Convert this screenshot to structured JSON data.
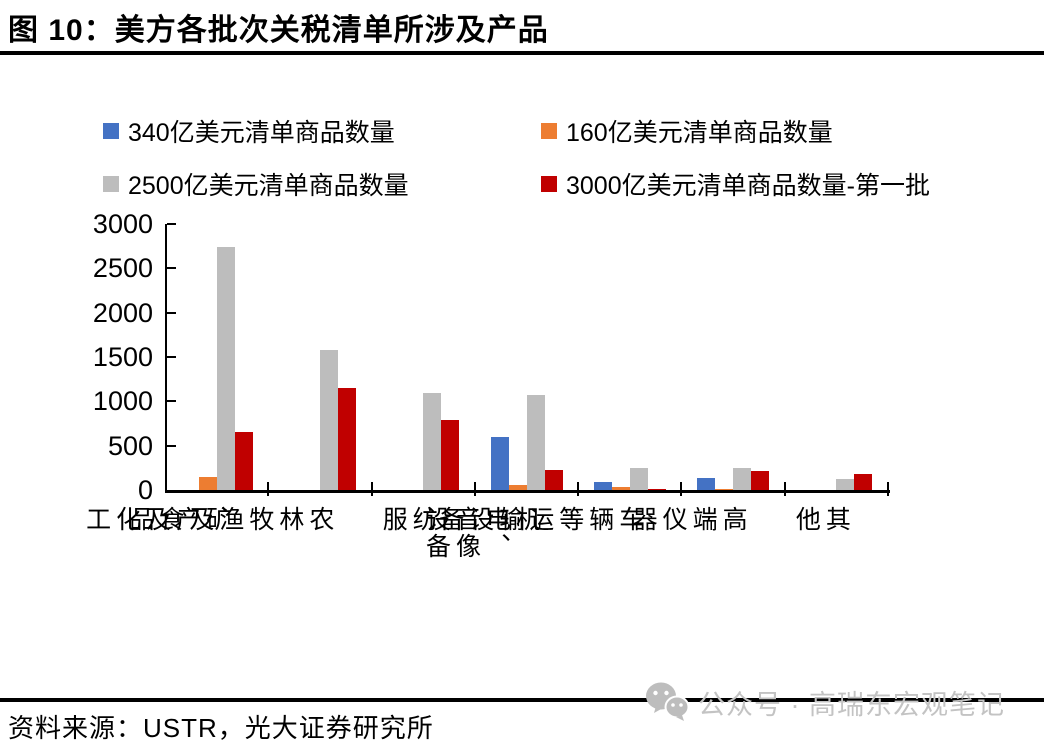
{
  "header": {
    "title": "图 10：美方各批次关税清单所涉及产品"
  },
  "chart_data": {
    "type": "bar",
    "title": "图 10：美方各批次关税清单所涉及产品",
    "categories": [
      "矿产及化工",
      "农林牧渔及食品",
      "纺服",
      "机电、音像设备",
      "车辆等运输设备",
      "高端仪器",
      "其他"
    ],
    "series": [
      {
        "name": "340亿美元清单商品数量",
        "color": "#4472C4",
        "values": [
          0,
          0,
          0,
          600,
          90,
          130,
          0
        ]
      },
      {
        "name": "160亿美元清单商品数量",
        "color": "#ED7D31",
        "values": [
          150,
          0,
          0,
          60,
          30,
          15,
          0
        ]
      },
      {
        "name": "2500亿美元清单商品数量",
        "color": "#BDBDBD",
        "values": [
          2740,
          1580,
          1090,
          1075,
          250,
          245,
          125
        ]
      },
      {
        "name": "3000亿美元清单商品数量-第一批",
        "color": "#C00000",
        "values": [
          650,
          1150,
          790,
          230,
          15,
          215,
          175
        ]
      }
    ],
    "xlabel": "",
    "ylabel": "",
    "ylim": [
      0,
      3000
    ],
    "yticks": [
      0,
      500,
      1000,
      1500,
      2000,
      2500,
      3000
    ],
    "legend_position": "top",
    "grid": false
  },
  "footer": {
    "source": "资料来源：USTR，光大证券研究所"
  },
  "watermark": {
    "icon": "wechat-icon",
    "text": "公众号 · 高瑞东宏观笔记"
  }
}
